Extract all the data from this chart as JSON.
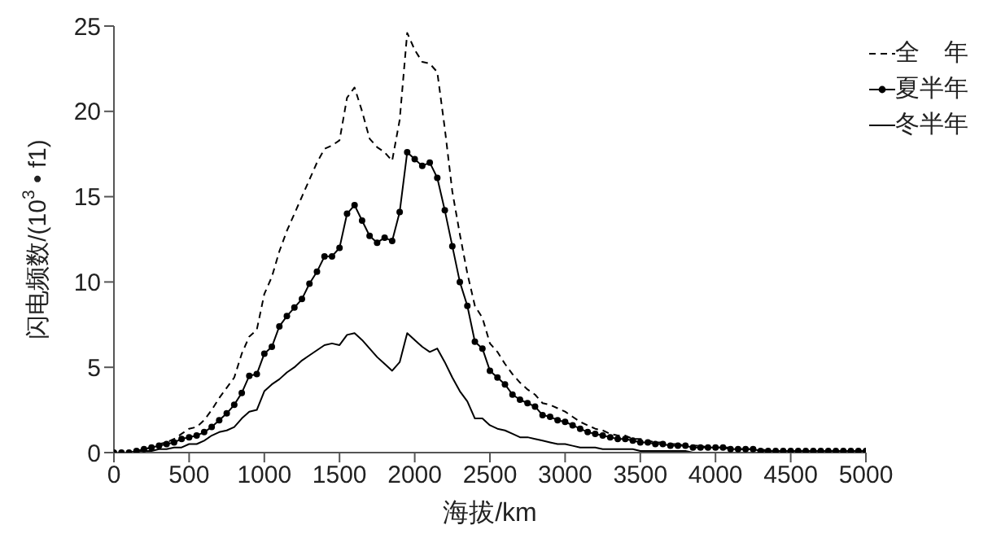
{
  "chart_data": {
    "type": "line",
    "xlabel": "海拔/km",
    "ylabel": "闪电频数/(10$^{3}$ • f1)",
    "x": [
      0,
      50,
      100,
      150,
      200,
      250,
      300,
      350,
      400,
      450,
      500,
      550,
      600,
      650,
      700,
      750,
      800,
      850,
      900,
      950,
      1000,
      1050,
      1100,
      1150,
      1200,
      1250,
      1300,
      1350,
      1400,
      1450,
      1500,
      1550,
      1600,
      1650,
      1700,
      1750,
      1800,
      1850,
      1900,
      1950,
      2000,
      2050,
      2100,
      2150,
      2200,
      2250,
      2300,
      2350,
      2400,
      2450,
      2500,
      2550,
      2600,
      2650,
      2700,
      2750,
      2800,
      2850,
      2900,
      2950,
      3000,
      3050,
      3100,
      3150,
      3200,
      3250,
      3300,
      3350,
      3400,
      3450,
      3500,
      3550,
      3600,
      3650,
      3700,
      3750,
      3800,
      3850,
      3900,
      3950,
      4000,
      4050,
      4100,
      4150,
      4200,
      4250,
      4300,
      4350,
      4400,
      4450,
      4500,
      4550,
      4600,
      4650,
      4700,
      4750,
      4800,
      4850,
      4900,
      4950,
      5000
    ],
    "series": [
      {
        "name": "全　年",
        "color": "#000000",
        "line_style": "dashed",
        "marker": "none",
        "values": [
          0,
          0,
          0,
          0.1,
          0.2,
          0.3,
          0.5,
          0.6,
          0.8,
          1.1,
          1.4,
          1.5,
          1.9,
          2.5,
          3.2,
          3.8,
          4.4,
          5.8,
          6.8,
          7.2,
          9.3,
          10.3,
          11.8,
          13.0,
          14.0,
          15.0,
          16.0,
          17.0,
          17.8,
          18.0,
          18.3,
          20.8,
          21.4,
          20.0,
          18.4,
          17.9,
          17.6,
          17.1,
          19.5,
          24.6,
          23.6,
          22.9,
          22.8,
          22.3,
          19.0,
          15.3,
          12.8,
          10.5,
          8.6,
          7.9,
          6.4,
          5.9,
          5.2,
          4.6,
          4.1,
          3.7,
          3.4,
          2.9,
          2.8,
          2.6,
          2.4,
          2.1,
          1.8,
          1.6,
          1.4,
          1.3,
          1.1,
          1.0,
          1.0,
          0.8,
          0.8,
          0.7,
          0.6,
          0.6,
          0.5,
          0.5,
          0.4,
          0.4,
          0.4,
          0.3,
          0.3,
          0.3,
          0.3,
          0.2,
          0.2,
          0.2,
          0.2,
          0.1,
          0.1,
          0.1,
          0.1,
          0.1,
          0.1,
          0.1,
          0.1,
          0.1,
          0.1,
          0.1,
          0.1,
          0.1,
          0.1
        ]
      },
      {
        "name": "夏半年",
        "color": "#000000",
        "line_style": "solid",
        "marker": "circle",
        "values": [
          0,
          0,
          0,
          0.1,
          0.2,
          0.3,
          0.4,
          0.5,
          0.6,
          0.8,
          0.9,
          1.0,
          1.2,
          1.5,
          1.9,
          2.3,
          2.8,
          3.5,
          4.5,
          4.6,
          5.8,
          6.2,
          7.4,
          8.0,
          8.5,
          9.0,
          9.9,
          10.6,
          11.5,
          11.5,
          12.0,
          14.0,
          14.5,
          13.6,
          12.7,
          12.3,
          12.6,
          12.4,
          14.1,
          17.6,
          17.2,
          16.8,
          17.0,
          16.1,
          14.2,
          12.1,
          10.0,
          8.6,
          6.5,
          6.1,
          4.8,
          4.4,
          4.0,
          3.4,
          3.1,
          2.9,
          2.7,
          2.2,
          2.1,
          1.9,
          1.8,
          1.6,
          1.4,
          1.2,
          1.1,
          1.0,
          0.9,
          0.8,
          0.8,
          0.7,
          0.6,
          0.6,
          0.5,
          0.5,
          0.4,
          0.4,
          0.4,
          0.3,
          0.3,
          0.3,
          0.3,
          0.3,
          0.2,
          0.2,
          0.2,
          0.2,
          0.1,
          0.1,
          0.1,
          0.1,
          0.1,
          0.1,
          0.1,
          0.1,
          0.1,
          0.1,
          0.1,
          0.1,
          0.1,
          0.1,
          0.1
        ]
      },
      {
        "name": "冬半年",
        "color": "#000000",
        "line_style": "solid",
        "marker": "none",
        "values": [
          0,
          0,
          0,
          0,
          0.1,
          0.1,
          0.2,
          0.2,
          0.3,
          0.3,
          0.5,
          0.5,
          0.7,
          1.0,
          1.2,
          1.3,
          1.5,
          2.0,
          2.4,
          2.5,
          3.6,
          4.0,
          4.3,
          4.7,
          5.0,
          5.4,
          5.7,
          6.0,
          6.3,
          6.4,
          6.3,
          6.9,
          7.0,
          6.6,
          6.1,
          5.6,
          5.2,
          4.8,
          5.3,
          7.0,
          6.6,
          6.2,
          5.9,
          6.1,
          5.3,
          4.4,
          3.6,
          3.0,
          2.0,
          2.0,
          1.6,
          1.4,
          1.3,
          1.1,
          0.9,
          0.9,
          0.8,
          0.7,
          0.6,
          0.5,
          0.5,
          0.4,
          0.3,
          0.3,
          0.3,
          0.2,
          0.2,
          0.2,
          0.2,
          0.2,
          0.1,
          0.1,
          0.1,
          0.1,
          0.1,
          0.1,
          0.1,
          0,
          0,
          0,
          0,
          0,
          0,
          0,
          0,
          0,
          0,
          0,
          0,
          0,
          0,
          0,
          0,
          0,
          0,
          0,
          0,
          0,
          0,
          0,
          0
        ]
      }
    ],
    "xlim": [
      0,
      5000
    ],
    "xticks": [
      0,
      500,
      1000,
      1500,
      2000,
      2500,
      3000,
      3500,
      4000,
      4500,
      5000
    ],
    "ylim": [
      0,
      25
    ],
    "yticks": [
      0,
      5,
      10,
      15,
      20,
      25
    ],
    "grid": false,
    "legend": "top right"
  }
}
